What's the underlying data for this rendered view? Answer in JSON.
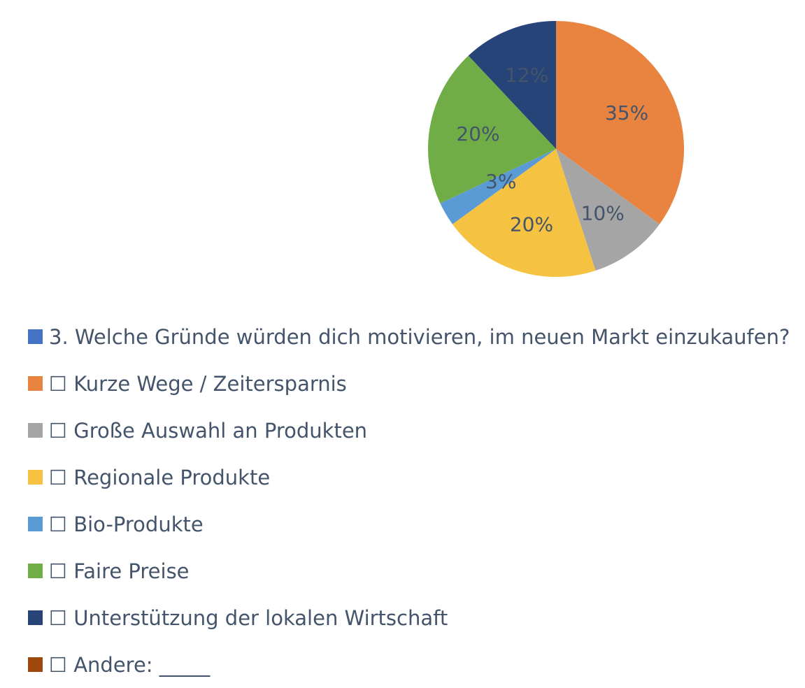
{
  "chart_data": {
    "type": "pie",
    "title": "",
    "legend_position": "bottom",
    "slices": [
      {
        "label": "3. Welche Gründe würden dich motivieren, im neuen Markt einzukaufen?",
        "value": 0,
        "data_label": "",
        "color": "#4472c4"
      },
      {
        "label": "☐ Kurze Wege / Zeitersparnis",
        "value": 35,
        "data_label": "35%",
        "color": "#e8843f"
      },
      {
        "label": "☐ Große Auswahl an Produkten",
        "value": 10,
        "data_label": "10%",
        "color": "#a5a5a5"
      },
      {
        "label": "☐ Regionale Produkte",
        "value": 20,
        "data_label": "20%",
        "color": "#f5c242"
      },
      {
        "label": "☐ Bio-Produkte",
        "value": 3,
        "data_label": "3%",
        "color": "#5b9bd5"
      },
      {
        "label": "☐ Faire Preise",
        "value": 20,
        "data_label": "20%",
        "color": "#70ad47"
      },
      {
        "label": "☐ Unterstützung der lokalen Wirtschaft",
        "value": 12,
        "data_label": "12%",
        "color": "#264478"
      },
      {
        "label": "☐ Andere: _____",
        "value": 0,
        "data_label": "",
        "color": "#9e480e"
      }
    ]
  }
}
